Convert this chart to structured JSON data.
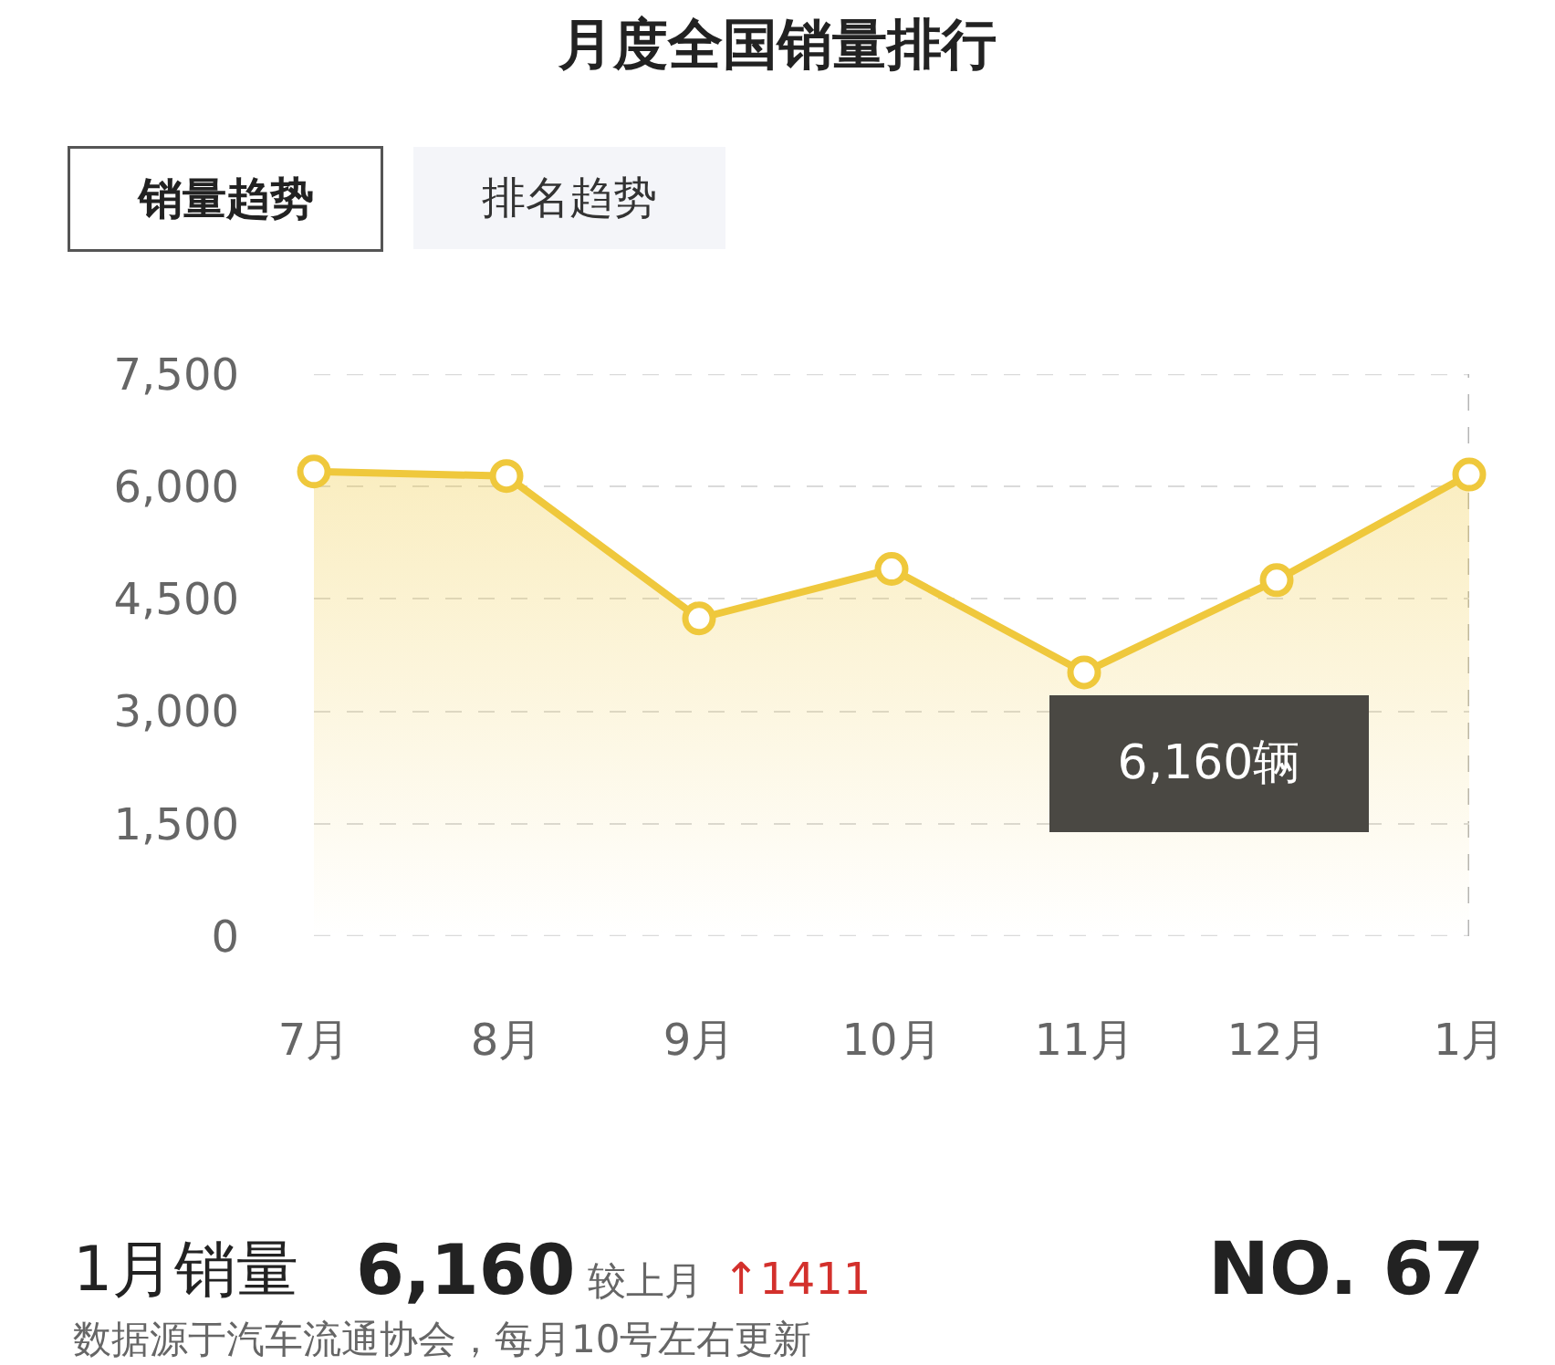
{
  "chart_data": {
    "type": "area",
    "title": "月度全国销量排行",
    "categories": [
      "7月",
      "8月",
      "9月",
      "10月",
      "11月",
      "12月",
      "1月"
    ],
    "series": [
      {
        "color": "#efc83c",
        "values": [
          6200,
          6140,
          4240,
          4900,
          3520,
          4750,
          6160
        ]
      }
    ],
    "ylim": [
      0,
      7500
    ],
    "yticks": [
      0,
      {
        "value": 1500,
        "label": "1,500"
      },
      {
        "value": 3000,
        "label": "3,000"
      },
      {
        "value": 4500,
        "label": "4,500"
      },
      {
        "value": 6000,
        "label": "6,000"
      },
      {
        "value": 7500,
        "label": "7,500"
      }
    ],
    "grid": "y",
    "marker": "circle",
    "line_style": "solid",
    "ref_lines": [
      {
        "axis": "x",
        "value": "1月",
        "color": "#b4b4b4",
        "line_style": "dashed"
      }
    ],
    "annotations": [
      "销量趋势",
      "排名趋势",
      "6,160辆",
      "1月销量",
      "6,160",
      "较上月",
      "↑1411",
      "NO. 67",
      "数据源于汽车流通协会，每月10号左右更新"
    ]
  }
}
